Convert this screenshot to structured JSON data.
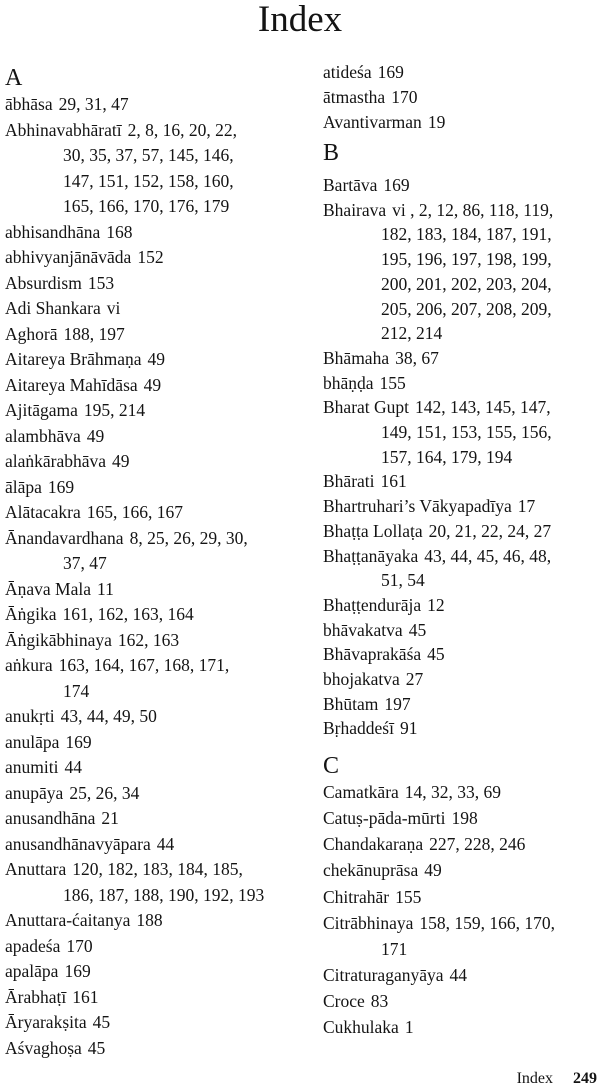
{
  "title": "Index",
  "columns": [
    {
      "sections": [
        {
          "letter": "A",
          "entries": [
            {
              "term": "ābhāsa",
              "pages": [
                "29, 31, 47"
              ]
            },
            {
              "term": "Abhinavabhāratī",
              "pages": [
                "2, 8, 16, 20, 22,",
                "30, 35, 37, 57, 145, 146,",
                "147, 151, 152, 158, 160,",
                "165, 166, 170, 176, 179"
              ]
            },
            {
              "term": "abhisandhāna",
              "pages": [
                "168"
              ]
            },
            {
              "term": "abhivyanjānāvāda",
              "pages": [
                "152"
              ]
            },
            {
              "term": "Absurdism",
              "pages": [
                "153"
              ]
            },
            {
              "term": "Adi Shankara",
              "pages": [
                "vi"
              ]
            },
            {
              "term": "Aghorā",
              "pages": [
                "188, 197"
              ]
            },
            {
              "term": "Aitareya Brāhmaṇa",
              "pages": [
                "49"
              ]
            },
            {
              "term": "Aitareya Mahīdāsa",
              "pages": [
                "49"
              ]
            },
            {
              "term": "Ajitāgama",
              "pages": [
                "195, 214"
              ]
            },
            {
              "term": "alambhāva",
              "pages": [
                "49"
              ]
            },
            {
              "term": "alaṅkārabhāva",
              "pages": [
                "49"
              ]
            },
            {
              "term": "ālāpa",
              "pages": [
                "169"
              ]
            },
            {
              "term": "Alātacakra",
              "pages": [
                "165, 166, 167"
              ]
            },
            {
              "term": "Ānandavardhana",
              "pages": [
                "8, 25, 26, 29, 30,",
                "37, 47"
              ]
            },
            {
              "term": "Āṇava Mala",
              "pages": [
                "11"
              ]
            },
            {
              "term": "Āṅgika",
              "pages": [
                "161, 162, 163, 164"
              ]
            },
            {
              "term": "Āṅgikābhinaya",
              "pages": [
                "162, 163"
              ]
            },
            {
              "term": "aṅkura",
              "pages": [
                "163, 164, 167, 168, 171,",
                "174"
              ]
            },
            {
              "term": "anukṛti",
              "pages": [
                "43, 44, 49, 50"
              ]
            },
            {
              "term": "anulāpa",
              "pages": [
                "169"
              ]
            },
            {
              "term": "anumiti",
              "pages": [
                "44"
              ]
            },
            {
              "term": "anupāya",
              "pages": [
                "25, 26, 34"
              ]
            },
            {
              "term": "anusandhāna",
              "pages": [
                "21"
              ]
            },
            {
              "term": "anusandhānavyāpara",
              "pages": [
                "44"
              ]
            },
            {
              "term": "Anuttara",
              "pages": [
                "120, 182, 183, 184, 185,",
                "186, 187, 188, 190, 192, 193"
              ]
            },
            {
              "term": "Anuttara-ćaitanya",
              "pages": [
                "188"
              ]
            },
            {
              "term": "apadeśa",
              "pages": [
                "170"
              ]
            },
            {
              "term": "apalāpa",
              "pages": [
                "169"
              ]
            },
            {
              "term": "Ārabhaṭī",
              "pages": [
                "161"
              ]
            },
            {
              "term": "Āryarakṣita",
              "pages": [
                "45"
              ]
            },
            {
              "term": "Aśvaghoṣa",
              "pages": [
                "45"
              ]
            }
          ]
        }
      ]
    },
    {
      "sections": [
        {
          "letter": "",
          "entries": [
            {
              "term": "atideśa",
              "pages": [
                "169"
              ]
            },
            {
              "term": "ātmastha",
              "pages": [
                "170"
              ]
            },
            {
              "term": "Avantivarman",
              "pages": [
                "19"
              ]
            }
          ]
        },
        {
          "letter": "B",
          "entries": [
            {
              "term": "Bartāva",
              "pages": [
                "169"
              ]
            },
            {
              "term": "Bhairava",
              "pages": [
                "vi , 2, 12, 86, 118, 119,",
                "182, 183, 184, 187, 191,",
                "195, 196, 197, 198, 199,",
                "200, 201, 202, 203, 204,",
                "205, 206, 207, 208, 209,",
                "212, 214"
              ]
            },
            {
              "term": "Bhāmaha",
              "pages": [
                "38, 67"
              ]
            },
            {
              "term": "bhāṇḍa",
              "pages": [
                "155"
              ]
            },
            {
              "term": "Bharat Gupt",
              "pages": [
                "142, 143, 145, 147,",
                "149, 151, 153, 155, 156,",
                "157, 164, 179, 194"
              ]
            },
            {
              "term": "Bhārati",
              "pages": [
                "161"
              ]
            },
            {
              "term": "Bhartruhari’s Vākyapadīya",
              "pages": [
                "17"
              ]
            },
            {
              "term": "Bhaṭṭa Lollaṭa",
              "pages": [
                "20, 21, 22, 24, 27"
              ]
            },
            {
              "term": "Bhaṭṭanāyaka",
              "pages": [
                "43, 44, 45, 46, 48,",
                "51, 54"
              ]
            },
            {
              "term": "Bhaṭṭendurāja",
              "pages": [
                "12"
              ]
            },
            {
              "term": "bhāvakatva",
              "pages": [
                "45"
              ]
            },
            {
              "term": "Bhāvaprakāśa",
              "pages": [
                "45"
              ]
            },
            {
              "term": "bhojakatva",
              "pages": [
                "27"
              ]
            },
            {
              "term": "Bhūtam",
              "pages": [
                "197"
              ]
            },
            {
              "term": "Bṛhaddeśī",
              "pages": [
                "91"
              ]
            }
          ]
        },
        {
          "letter": "C",
          "entries": [
            {
              "term": "Camatkāra",
              "pages": [
                "14, 32, 33, 69"
              ]
            },
            {
              "term": "Catuṣ-pāda-mūrti",
              "pages": [
                "198"
              ]
            },
            {
              "term": "Chandakaraṇa",
              "pages": [
                "227, 228, 246"
              ]
            },
            {
              "term": "chekānuprāsa",
              "pages": [
                "49"
              ]
            },
            {
              "term": "Chitrahār",
              "pages": [
                "155"
              ]
            },
            {
              "term": "Citrābhinaya",
              "pages": [
                "158, 159, 166, 170,",
                "171"
              ]
            },
            {
              "term": "Citraturaganyāya",
              "pages": [
                "44"
              ]
            },
            {
              "term": "Croce",
              "pages": [
                "83"
              ]
            },
            {
              "term": "Cukhulaka",
              "pages": [
                "1"
              ]
            }
          ]
        }
      ]
    }
  ],
  "footer": {
    "label": "Index",
    "page_number": "249"
  }
}
